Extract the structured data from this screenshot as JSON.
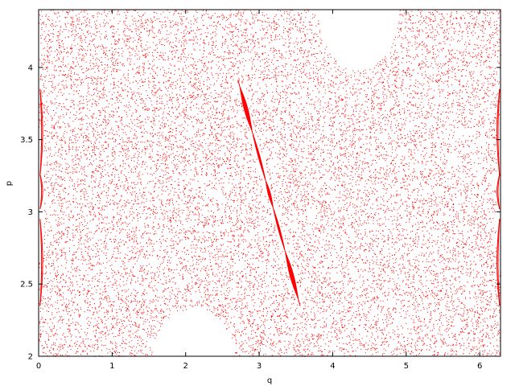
{
  "chart_data": {
    "type": "scatter",
    "xlabel": "q",
    "ylabel": "p",
    "xlim": [
      0,
      6.2832
    ],
    "ylim": [
      2,
      4.4
    ],
    "xticks": [
      "0",
      "1",
      "2",
      "3",
      "4",
      "5",
      "6"
    ],
    "yticks": [
      "2",
      "2.5",
      "3",
      "3.5",
      "4"
    ],
    "series_color": "#ff0000",
    "grid": false,
    "legend": "none",
    "regular_islands": [
      {
        "center": [
          3.13,
          3.14
        ],
        "half_length": 0.9,
        "slope": -1.85
      },
      {
        "center": [
          0.02,
          3.14
        ],
        "half_length": 0.45,
        "slope": 0
      },
      {
        "center": [
          6.27,
          3.14
        ],
        "half_length": 0.45,
        "slope": 0
      }
    ],
    "empty_regions": [
      {
        "center": [
          4.35,
          4.4
        ],
        "radius": [
          0.55,
          0.42
        ]
      },
      {
        "center": [
          2.1,
          2.0
        ],
        "radius": [
          0.55,
          0.33
        ]
      }
    ]
  }
}
